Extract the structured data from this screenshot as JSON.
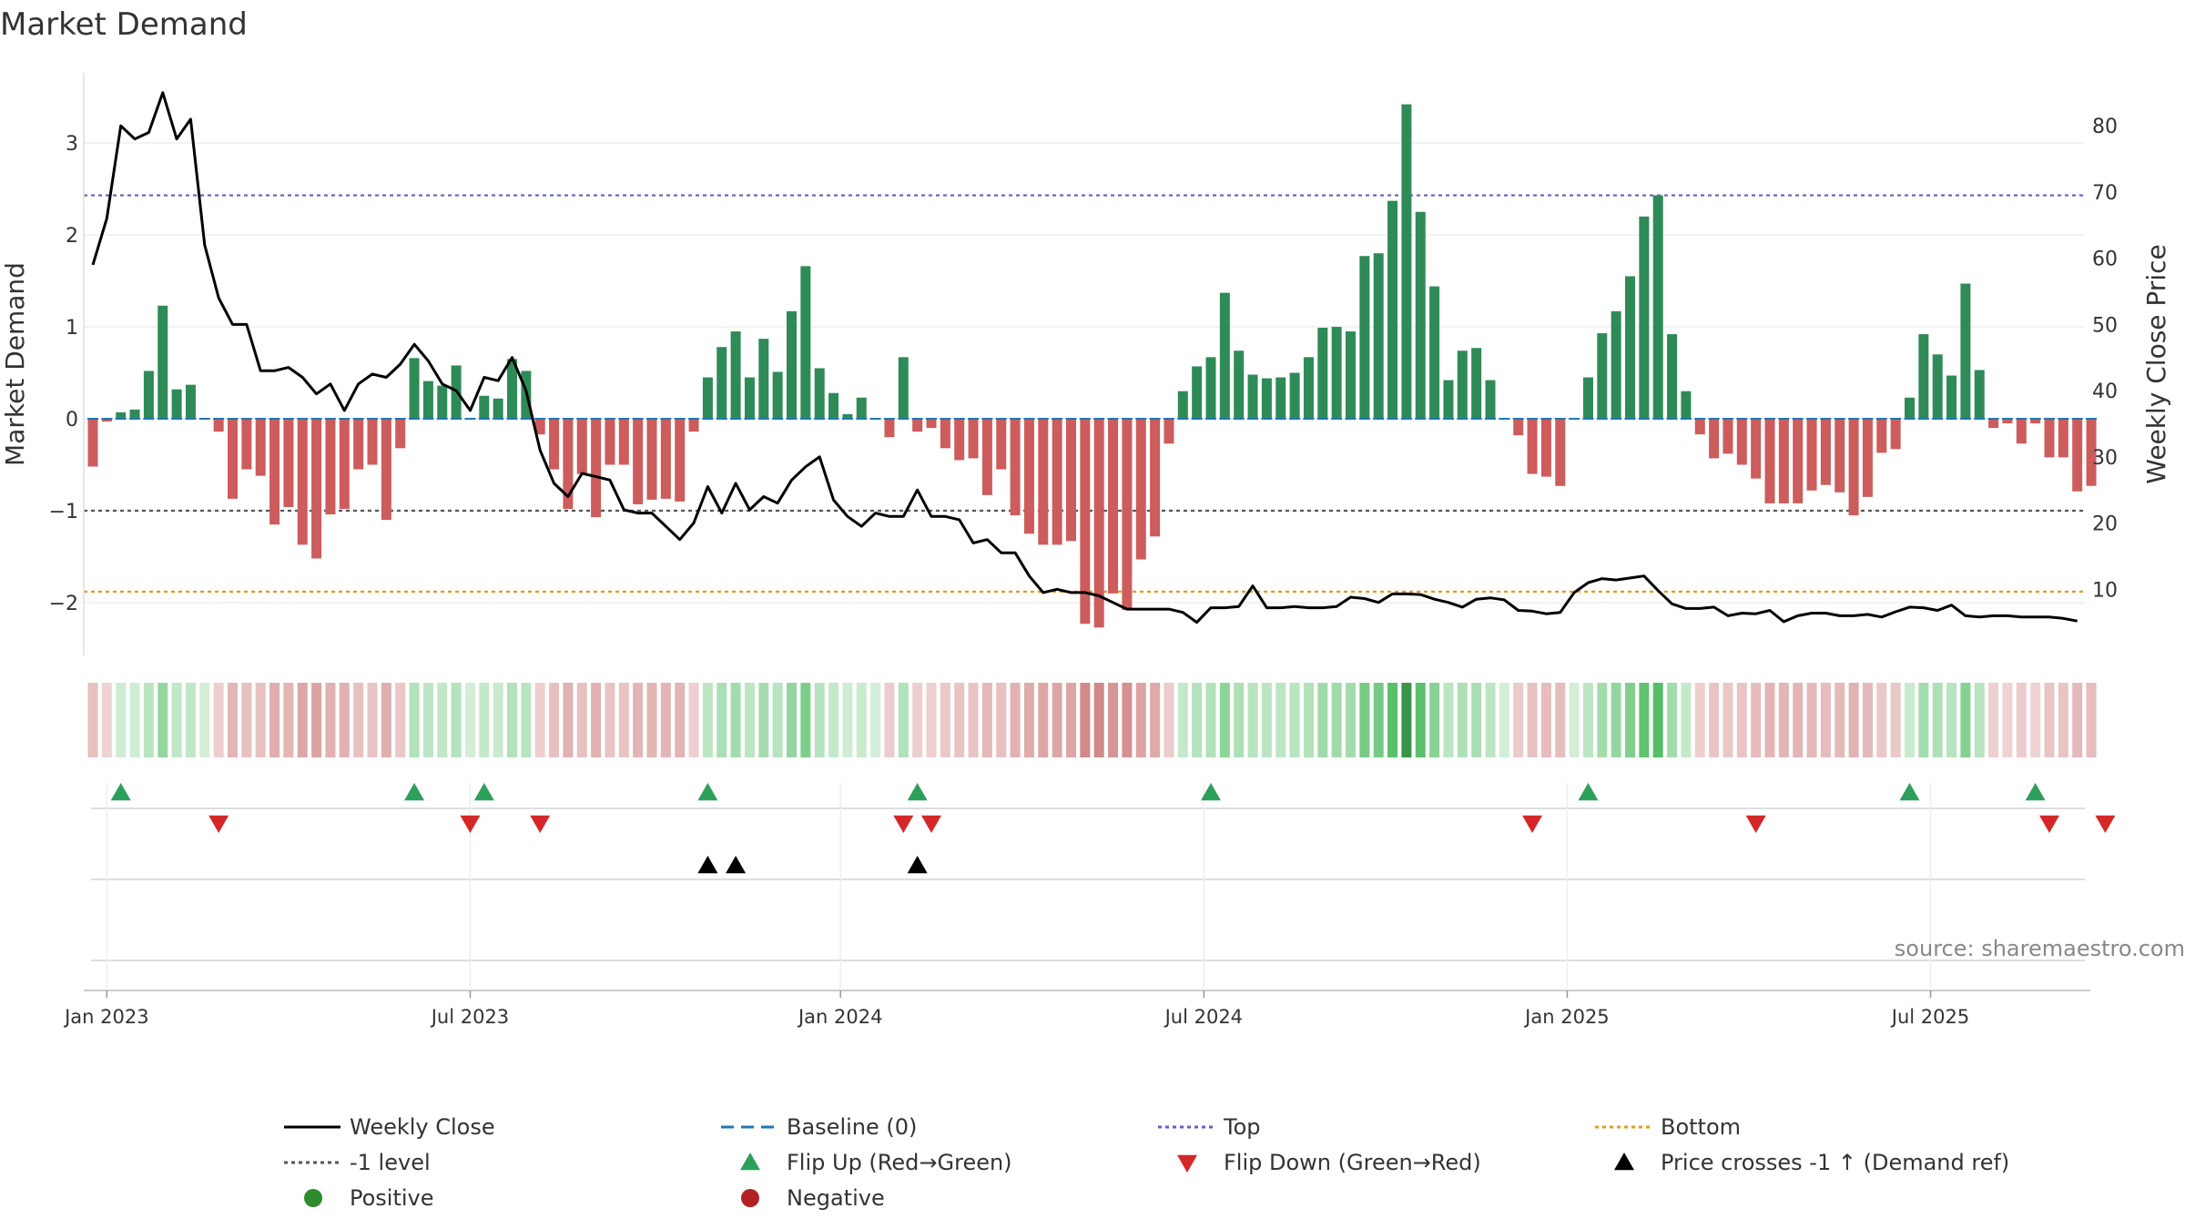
{
  "title": "Market Demand",
  "source": "source: sharemaestro.com",
  "chart_data": {
    "type": "bar",
    "ylabel_left": "Market Demand",
    "ylabel_right": "Weekly Close Price",
    "left_ylim": [
      -2.6,
      3.5
    ],
    "right_ylim": [
      0,
      88
    ],
    "left_ticks": [
      "3",
      "2",
      "1",
      "0",
      "−1",
      "−2"
    ],
    "left_tick_values": [
      3,
      2,
      1,
      0,
      -1,
      -2
    ],
    "right_ticks": [
      "80",
      "70",
      "60",
      "50",
      "40",
      "30",
      "20",
      "10"
    ],
    "right_tick_values": [
      80,
      70,
      60,
      50,
      40,
      30,
      20,
      10
    ],
    "reference_lines": {
      "top": 2.43,
      "minus_one": -1,
      "bottom": -1.88
    },
    "date_ticks": [
      "Jan 2023",
      "Jul 2023",
      "Jan 2024",
      "Jul 2024",
      "Jan 2025",
      "Jul 2025"
    ],
    "date_tick_weeks": [
      1,
      27,
      53.5,
      79.5,
      105.5,
      131.5
    ],
    "demand": [
      -0.52,
      -0.03,
      0.07,
      0.1,
      0.52,
      1.23,
      0.32,
      0.37,
      0.0,
      -0.14,
      -0.87,
      -0.55,
      -0.62,
      -1.15,
      -0.96,
      -1.37,
      -1.52,
      -1.04,
      -0.98,
      -0.55,
      -0.5,
      -1.1,
      -0.32,
      0.66,
      0.41,
      0.36,
      0.58,
      0.0,
      0.25,
      0.22,
      0.65,
      0.52,
      -0.17,
      -0.55,
      -0.98,
      -0.6,
      -1.07,
      -0.5,
      -0.5,
      -0.93,
      -0.88,
      -0.87,
      -0.9,
      -0.14,
      0.45,
      0.78,
      0.95,
      0.45,
      0.87,
      0.51,
      1.17,
      1.66,
      0.55,
      0.28,
      0.05,
      0.23,
      0.0,
      -0.2,
      0.67,
      -0.14,
      -0.1,
      -0.32,
      -0.45,
      -0.43,
      -0.83,
      -0.55,
      -1.05,
      -1.25,
      -1.37,
      -1.37,
      -1.33,
      -2.23,
      -2.27,
      -1.9,
      -2.08,
      -1.53,
      -1.28,
      -0.27,
      0.3,
      0.57,
      0.67,
      1.37,
      0.74,
      0.48,
      0.44,
      0.45,
      0.5,
      0.67,
      0.99,
      1.0,
      0.95,
      1.77,
      1.8,
      2.37,
      3.42,
      2.25,
      1.44,
      0.42,
      0.74,
      0.77,
      0.42,
      0.0,
      -0.18,
      -0.6,
      -0.63,
      -0.73,
      0.0,
      0.45,
      0.93,
      1.17,
      1.55,
      2.2,
      2.43,
      0.92,
      0.3,
      -0.17,
      -0.43,
      -0.38,
      -0.5,
      -0.65,
      -0.92,
      -0.92,
      -0.92,
      -0.78,
      -0.72,
      -0.8,
      -1.05,
      -0.85,
      -0.37,
      -0.33,
      0.23,
      0.92,
      0.7,
      0.47,
      1.47,
      0.53,
      -0.1,
      -0.05,
      -0.27,
      -0.05,
      -0.42,
      -0.42,
      -0.79,
      -0.73
    ],
    "weekly_close": [
      59,
      66,
      80,
      78,
      79,
      85,
      78,
      81,
      62,
      54,
      50,
      50,
      43,
      43,
      43.5,
      42,
      39.5,
      41,
      37,
      41,
      42.5,
      42,
      44,
      47,
      44.5,
      41,
      40,
      37,
      42,
      41.5,
      45,
      40,
      31,
      26,
      24,
      27.5,
      27,
      26.5,
      22,
      21.5,
      21.5,
      19.5,
      17.5,
      20,
      25.5,
      21.5,
      26,
      22,
      24,
      23,
      26.5,
      28.5,
      30,
      23.5,
      21,
      19.5,
      21.5,
      21,
      21,
      25,
      21,
      21,
      20.5,
      17,
      17.5,
      15.5,
      15.5,
      12,
      9.5,
      10,
      9.5,
      9.5,
      9,
      8,
      7,
      7,
      7,
      7,
      6.5,
      5,
      7.2,
      7.2,
      7.4,
      10.5,
      7.2,
      7.2,
      7.4,
      7.2,
      7.2,
      7.4,
      8.8,
      8.6,
      8,
      9.3,
      9.3,
      9.2,
      8.5,
      8,
      7.3,
      8.5,
      8.7,
      8.4,
      6.8,
      6.7,
      6.3,
      6.5,
      9.5,
      11,
      11.6,
      11.4,
      11.7,
      12,
      9.8,
      7.8,
      7.1,
      7.1,
      7.3,
      6,
      6.4,
      6.3,
      6.8,
      5.1,
      6,
      6.4,
      6.4,
      6,
      6,
      6.2,
      5.8,
      6.6,
      7.3,
      7.2,
      6.8,
      7.6,
      6,
      5.8,
      6,
      6,
      5.8,
      5.8,
      5.8,
      5.6,
      5.2
    ],
    "flip_up_weeks": [
      2,
      23,
      28,
      44,
      59,
      80,
      107,
      130,
      139
    ],
    "flip_down_weeks": [
      9,
      27,
      32,
      58,
      60,
      103,
      119,
      140,
      144
    ],
    "price_cross_weeks": [
      44,
      46,
      59
    ]
  },
  "legend": [
    {
      "label": "Weekly Close",
      "symbol": "line-solid",
      "color": "#000000"
    },
    {
      "label": "Baseline (0)",
      "symbol": "line-dashed",
      "color": "#1f77b4"
    },
    {
      "label": "Top",
      "symbol": "line-dotted",
      "color": "#5d5fd3"
    },
    {
      "label": "Bottom",
      "symbol": "line-dotted",
      "color": "#e69b1c"
    },
    {
      "label": "-1 level",
      "symbol": "line-dotted",
      "color": "#555555"
    },
    {
      "label": "Flip Up (Red→Green)",
      "symbol": "triangle-up",
      "color": "#2ca05a"
    },
    {
      "label": "Flip Down (Green→Red)",
      "symbol": "triangle-down",
      "color": "#d62728"
    },
    {
      "label": "Price crosses -1 ↑ (Demand ref)",
      "symbol": "triangle-up",
      "color": "#000000"
    },
    {
      "label": "Positive",
      "symbol": "circle",
      "color": "#2e8b2e"
    },
    {
      "label": "Negative",
      "symbol": "circle",
      "color": "#b22222"
    }
  ],
  "colors": {
    "positive_bar": "#2e8b57",
    "negative_bar": "#cd5c5c",
    "price_line": "#000000",
    "baseline": "#1f77b4",
    "top_line": "#5d5fd3",
    "bottom_line": "#e69b1c",
    "minus_one_line": "#555555",
    "grid": "#e6e6e6"
  }
}
